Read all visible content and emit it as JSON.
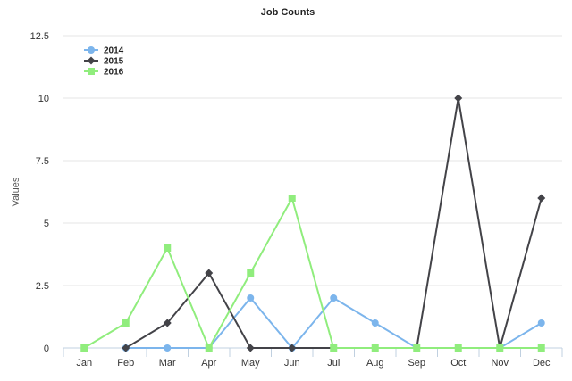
{
  "chart_data": {
    "type": "line",
    "title": "Job Counts",
    "xlabel": "",
    "ylabel": "Values",
    "categories": [
      "Jan",
      "Feb",
      "Mar",
      "Apr",
      "May",
      "Jun",
      "Jul",
      "Aug",
      "Sep",
      "Oct",
      "Nov",
      "Dec"
    ],
    "ylim": [
      0,
      12.5
    ],
    "yticks": [
      "0",
      "2.5",
      "5",
      "7.5",
      "10",
      "12.5"
    ],
    "grid": true,
    "legend_position": "top-left",
    "series": [
      {
        "name": "2014",
        "color": "#7cb5ec",
        "marker": "circle",
        "values": [
          null,
          0,
          0,
          0,
          2,
          0,
          2,
          1,
          0,
          null,
          0,
          1
        ]
      },
      {
        "name": "2015",
        "color": "#434348",
        "marker": "diamond",
        "values": [
          null,
          0,
          1,
          3,
          0,
          0,
          0,
          0,
          0,
          10,
          0,
          6
        ]
      },
      {
        "name": "2016",
        "color": "#90ed7d",
        "marker": "square",
        "values": [
          0,
          1,
          4,
          0,
          3,
          6,
          0,
          0,
          0,
          0,
          0,
          0
        ]
      }
    ]
  }
}
